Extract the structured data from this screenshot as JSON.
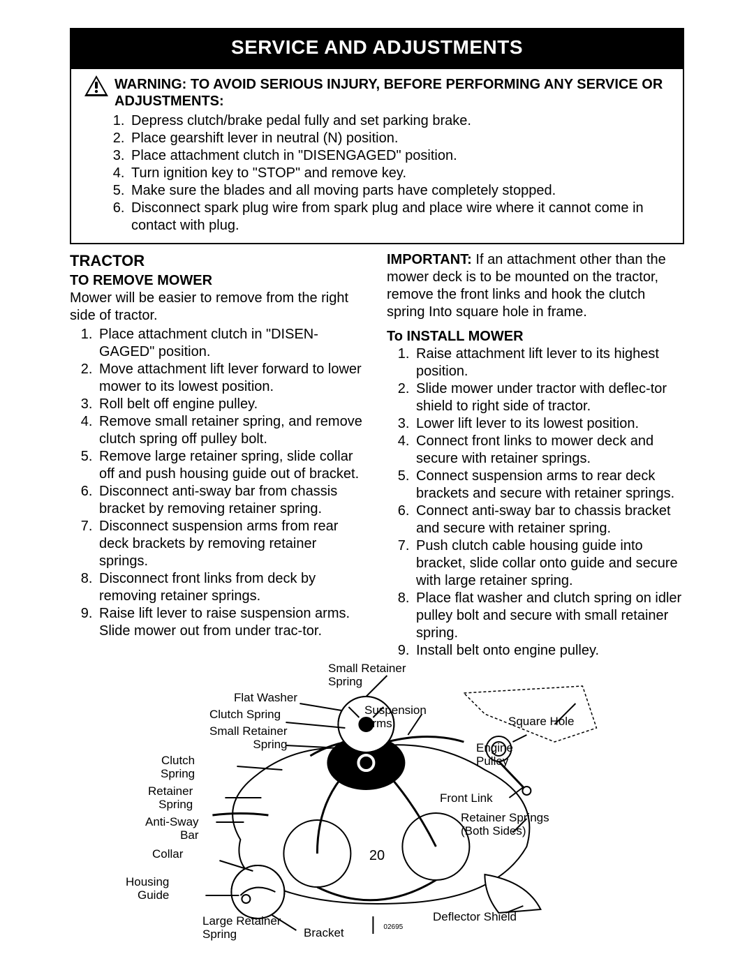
{
  "title": "SERVICE AND ADJUSTMENTS",
  "warning": {
    "heading": "WARNING: TO AVOID SERIOUS INJURY, BEFORE PERFORMING ANY SERVICE OR ADJUSTMENTS:",
    "items": [
      "Depress clutch/brake pedal fully and set parking brake.",
      "Place gearshift lever in neutral (N) position.",
      "Place attachment clutch  in \"DISENGAGED\" position.",
      "Turn ignition key to \"STOP\" and remove key.",
      "Make sure the blades and all moving parts have completely stopped.",
      "Disconnect spark plug wire from spark plug and place wire where it cannot come in contact with plug."
    ]
  },
  "tractor_heading": "TRACTOR",
  "remove": {
    "heading": "TO REMOVE MOWER",
    "intro": "Mower will be easier to remove from the right side of tractor.",
    "steps": [
      "Place attachment clutch in \"DISEN-GAGED\" position.",
      "Move attachment lift lever forward to lower mower to its lowest position.",
      "Roll belt off engine pulley.",
      "Remove small retainer spring, and remove clutch spring off pulley bolt.",
      "Remove large retainer spring, slide collar off and push housing guide out of bracket.",
      "Disconnect anti-sway bar from chassis bracket by removing retainer spring.",
      "Disconnect suspension arms from rear deck brackets by removing retainer springs.",
      "Disconnect front links from deck by removing retainer springs.",
      "Raise lift lever to raise suspension arms. Slide mower out from under trac-tor."
    ]
  },
  "important": {
    "label": "IMPORTANT:",
    "text": " If an attachment other than the mower deck is to be mounted on the tractor, remove the front links and hook the clutch spring Into square hole in frame."
  },
  "install": {
    "heading": "To INSTALL MOWER",
    "steps": [
      "Raise attachment lift lever to its highest position.",
      "Slide mower under tractor with deflec-tor shield to right side of tractor.",
      "Lower lift lever to its lowest position.",
      "Connect front links to mower deck and secure with retainer springs.",
      "Connect suspension arms to rear deck brackets and secure with retainer springs.",
      "Connect anti-sway bar to chassis bracket and secure with retainer spring.",
      "Push clutch cable housing guide into bracket, slide collar onto guide and secure with large retainer spring.",
      "Place flat washer and clutch spring on idler pulley bolt and secure with small retainer spring.",
      "Install belt onto engine pulley."
    ]
  },
  "diagram": {
    "labels": {
      "small_retainer_spring_top": "Small Retainer\nSpring",
      "flat_washer": "Flat Washer",
      "clutch_spring_top": "Clutch Spring",
      "small_retainer_spring_mid": "Small Retainer\nSpring",
      "clutch_spring_left": "Clutch\nSpring",
      "retainer_spring_left": "Retainer\nSpring",
      "anti_sway_bar": "Anti-Sway\nBar",
      "collar": "Collar",
      "housing_guide": "Housing\nGuide",
      "large_retainer_spring": "Large Retainer\nSpring",
      "bracket": "Bracket",
      "suspension_arms": "Suspension\nArms",
      "square_hole": "Square Hole",
      "engine_pulley": "Engine\nPulley",
      "front_link": "Front Link",
      "retainer_springs_both": "Retainer Springs\n(Both Sides)",
      "deflector_shield": "Deflector Shield",
      "part_no": "02695"
    }
  },
  "page_number": "20"
}
